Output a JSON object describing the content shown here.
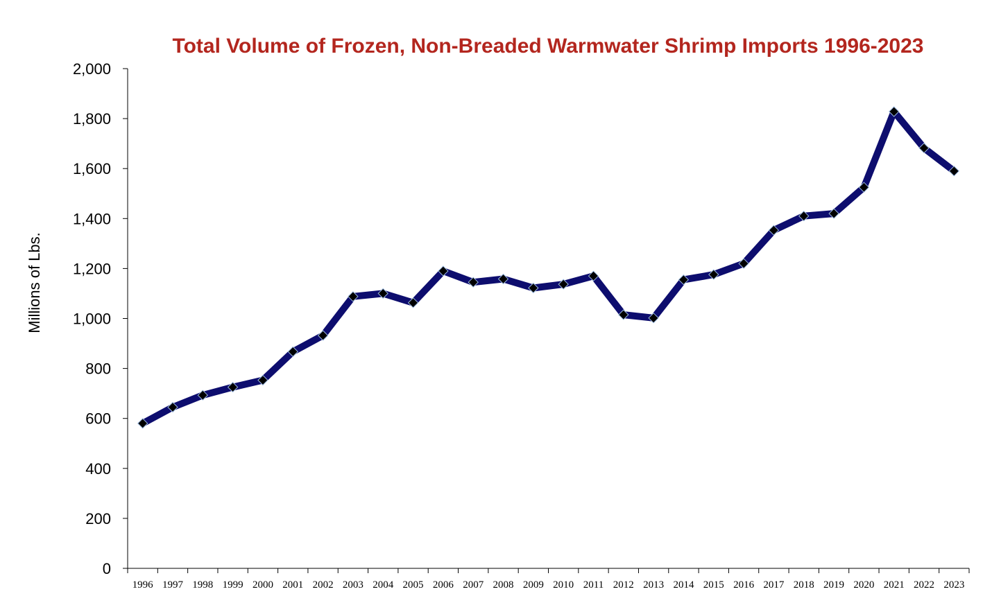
{
  "chart_data": {
    "type": "line",
    "title": "Total Volume of Frozen, Non-Breaded Warmwater Shrimp Imports 1996-2023",
    "xlabel": "",
    "ylabel": "Millions of Lbs.",
    "ylim": [
      0,
      2000
    ],
    "yticks": [
      0,
      200,
      400,
      600,
      800,
      1000,
      1200,
      1400,
      1600,
      1800,
      2000
    ],
    "ytick_labels": [
      "0",
      "200",
      "400",
      "600",
      "800",
      "1,000",
      "1,200",
      "1,400",
      "1,600",
      "1,800",
      "2,000"
    ],
    "categories": [
      "1996",
      "1997",
      "1998",
      "1999",
      "2000",
      "2001",
      "2002",
      "2003",
      "2004",
      "2005",
      "2006",
      "2007",
      "2008",
      "2009",
      "2010",
      "2011",
      "2012",
      "2013",
      "2014",
      "2015",
      "2016",
      "2017",
      "2018",
      "2019",
      "2020",
      "2021",
      "2022",
      "2023"
    ],
    "series": [
      {
        "values": [
          580,
          645,
          693,
          725,
          753,
          867,
          932,
          1088,
          1100,
          1063,
          1190,
          1145,
          1158,
          1122,
          1137,
          1170,
          1015,
          1002,
          1155,
          1176,
          1220,
          1353,
          1410,
          1420,
          1525,
          1828,
          1682,
          1590
        ]
      }
    ],
    "grid": false,
    "legend": "none",
    "colors": {
      "title": "#b3261e",
      "line": "#0d0d6e",
      "marker": "#000000",
      "marker_edge": "#9ab8e0",
      "axis": "#000000"
    }
  }
}
